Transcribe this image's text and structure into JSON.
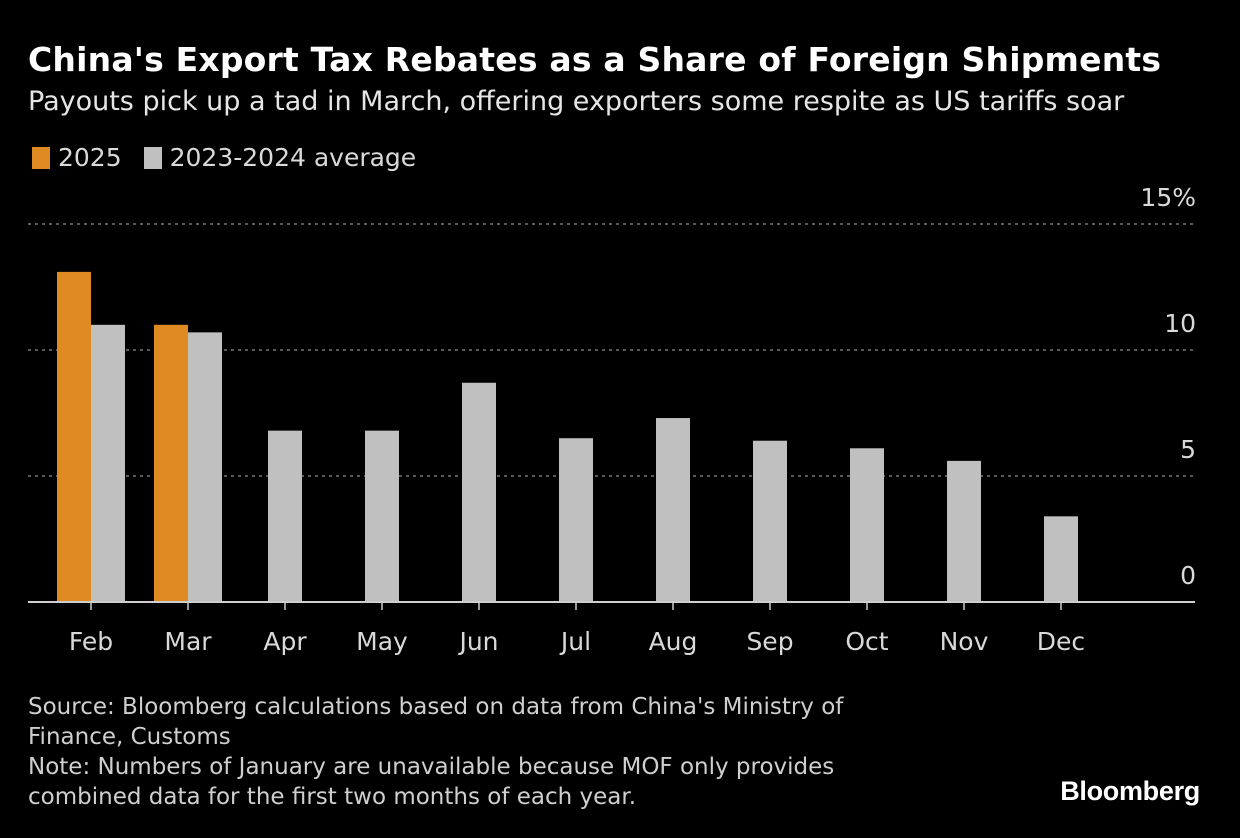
{
  "colors": {
    "series_2025": "#e08a24",
    "series_avg": "#c0c0c0",
    "grid": "#777777",
    "axis": "#cfcfcf",
    "text": "#d9d9d9"
  },
  "chart_data": {
    "type": "bar",
    "title": "China's Export Tax Rebates as a Share of Foreign Shipments",
    "subtitle": "Payouts pick up a tad in March, offering exporters some respite as US tariffs soar",
    "categories": [
      "Feb",
      "Mar",
      "Apr",
      "May",
      "Jun",
      "Jul",
      "Aug",
      "Sep",
      "Oct",
      "Nov",
      "Dec"
    ],
    "series": [
      {
        "name": "2025",
        "values": [
          13.1,
          11.0,
          null,
          null,
          null,
          null,
          null,
          null,
          null,
          null,
          null
        ]
      },
      {
        "name": "2023-2024 average",
        "values": [
          11.0,
          10.7,
          6.8,
          6.8,
          8.7,
          6.5,
          7.3,
          6.4,
          6.1,
          5.6,
          3.4
        ]
      }
    ],
    "ylim": [
      0,
      15
    ],
    "yticks": [
      0,
      5,
      10,
      15
    ],
    "ytick_labels": [
      "0",
      "5",
      "10",
      "15%"
    ],
    "y_axis_side": "right",
    "grid": true,
    "legend_position": "top-left",
    "xlabel": "",
    "ylabel": ""
  },
  "legend": {
    "item_2025": "2025",
    "item_avg": "2023-2024 average"
  },
  "footer": {
    "source": "Source: Bloomberg calculations based on data from China's Ministry of\nFinance, Customs",
    "note": "Note: Numbers of January are unavailable because MOF only provides\ncombined data for the first two months of each year."
  },
  "brand": "Bloomberg"
}
